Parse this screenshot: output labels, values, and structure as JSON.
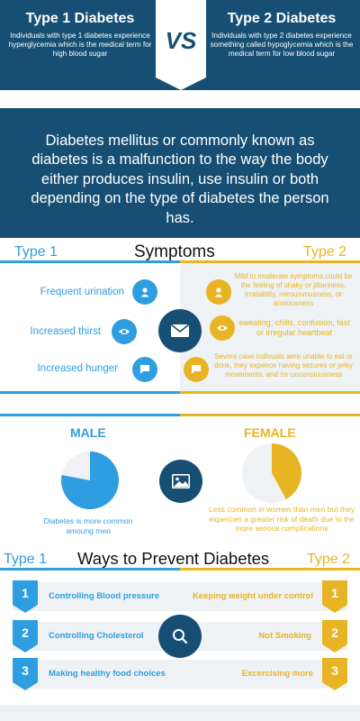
{
  "header": {
    "left_title": "Type 1 Diabetes",
    "left_text": "Individuals with type 1 diabetes experience hyperglycemia which is the medical term for high blood sugar",
    "vs": "VS",
    "right_title": "Type 2 Diabetes",
    "right_text": "Individuals with type 2 diabetes experience something called hypoglycemia which is the medical term for low blood sugar"
  },
  "intro": "Diabetes mellitus or commonly known as diabetes is a malfunction to the way the body either produces insulin, use insulin or both depending on the type of diabetes the person has.",
  "symptoms": {
    "title": "Symptoms",
    "type1_label": "Type 1",
    "type2_label": "Type 2",
    "type1_items": [
      "Frequent urination",
      "Increased thirst",
      "Increased hunger"
    ],
    "type2_items": [
      "Mild to moderate symptoms could be the feeling of shaky or jitteriness, irratiablity, nerousvousness, or anxiousness",
      "sweating, chills, confusion, fast or irregular heartbeat",
      "Severe case indivuals aere unable to eat or drink, they expeirce  having sezures or jerky movements, and /or unconsiousness"
    ]
  },
  "gender": {
    "male_label": "MALE",
    "female_label": "FEMALE",
    "male_caption": "Diabetes is more common amoung men",
    "female_caption": "Less common in women than men but they expericen a greater risk of death due to the more serious complications",
    "male_share": 0.78,
    "female_share": 0.42
  },
  "prevent": {
    "title": "Ways to Prevent Diabetes",
    "type1_label": "Type 1",
    "type2_label": "Type 2",
    "rows": [
      {
        "num": "1",
        "left": "Controlling Blood pressure",
        "right": "Keeping weight under control"
      },
      {
        "num": "2",
        "left": "Controlling Cholesterol",
        "right": "Not Smoking"
      },
      {
        "num": "3",
        "left": "Making healthy food choices",
        "right": "Excercising more"
      }
    ]
  },
  "colors": {
    "navy": "#164f73",
    "blue": "#2f9ee0",
    "gold": "#e8b423",
    "panel": "#eef2f5"
  },
  "icons": [
    "user-icon",
    "eye-icon",
    "chat-icon",
    "envelope-icon",
    "image-icon",
    "search-icon"
  ]
}
